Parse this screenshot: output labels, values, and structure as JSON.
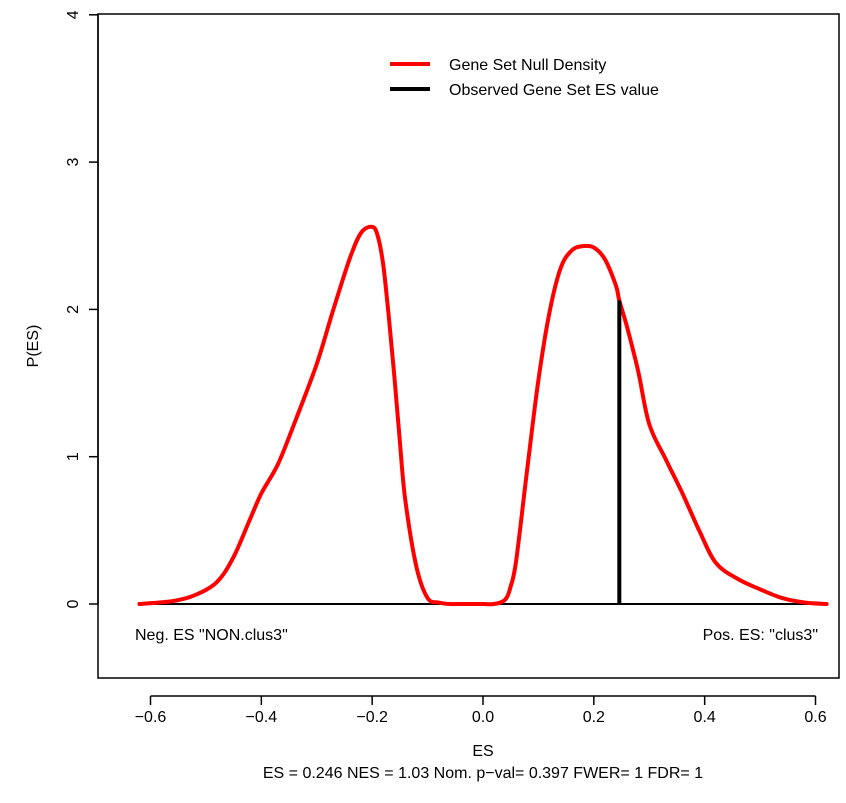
{
  "chart_data": {
    "type": "line",
    "xlabel": "ES",
    "ylabel": "P(ES)",
    "subtitle": "ES = 0.246  NES = 1.03 Nom. p−val= 0.397 FWER= 1 FDR= 1",
    "xlim": [
      -0.65,
      0.65
    ],
    "ylim": [
      -0.5,
      4
    ],
    "x_ticks": [
      -0.6,
      -0.4,
      -0.2,
      0.0,
      0.2,
      0.4,
      0.6
    ],
    "x_tick_labels": [
      "−0.6",
      "−0.4",
      "−0.2",
      "0.0",
      "0.2",
      "0.4",
      "0.6"
    ],
    "y_ticks": [
      0,
      1,
      2,
      3,
      4
    ],
    "y_tick_labels": [
      "0",
      "1",
      "2",
      "3",
      "4"
    ],
    "legend": {
      "placement": "top-right",
      "entries": [
        {
          "label": "Gene Set Null Density",
          "color": "#ff0000"
        },
        {
          "label": "Observed Gene Set ES value",
          "color": "#000000"
        }
      ]
    },
    "series": [
      {
        "name": "Gene Set Null Density",
        "color": "#ff0000",
        "x": [
          -0.62,
          -0.56,
          -0.52,
          -0.48,
          -0.45,
          -0.42,
          -0.4,
          -0.37,
          -0.34,
          -0.3,
          -0.27,
          -0.24,
          -0.22,
          -0.2,
          -0.19,
          -0.18,
          -0.17,
          -0.16,
          -0.15,
          -0.14,
          -0.12,
          -0.1,
          -0.08,
          -0.06,
          -0.04,
          -0.02,
          0.0,
          0.02,
          0.04,
          0.05,
          0.06,
          0.08,
          0.1,
          0.12,
          0.14,
          0.16,
          0.18,
          0.2,
          0.22,
          0.24,
          0.246,
          0.26,
          0.28,
          0.3,
          0.33,
          0.36,
          0.39,
          0.42,
          0.46,
          0.5,
          0.54,
          0.58,
          0.62
        ],
        "y": [
          0.0,
          0.02,
          0.06,
          0.15,
          0.32,
          0.58,
          0.75,
          0.95,
          1.23,
          1.63,
          2.0,
          2.35,
          2.52,
          2.56,
          2.5,
          2.3,
          1.95,
          1.55,
          1.1,
          0.7,
          0.25,
          0.04,
          0.01,
          0.0,
          0.0,
          0.0,
          0.0,
          0.0,
          0.03,
          0.12,
          0.3,
          0.92,
          1.52,
          1.98,
          2.28,
          2.4,
          2.43,
          2.42,
          2.34,
          2.16,
          2.06,
          1.88,
          1.58,
          1.22,
          0.98,
          0.75,
          0.5,
          0.28,
          0.17,
          0.1,
          0.04,
          0.01,
          0.0
        ]
      }
    ],
    "observed_es": {
      "x": 0.246,
      "y_from": 0,
      "y_to": 2.06,
      "color": "#000000"
    },
    "baseline": {
      "y": 0,
      "color": "#000000"
    },
    "annotations": {
      "left": "Neg. ES \"NON.clus3\"",
      "right": "Pos. ES: \"clus3\""
    }
  }
}
